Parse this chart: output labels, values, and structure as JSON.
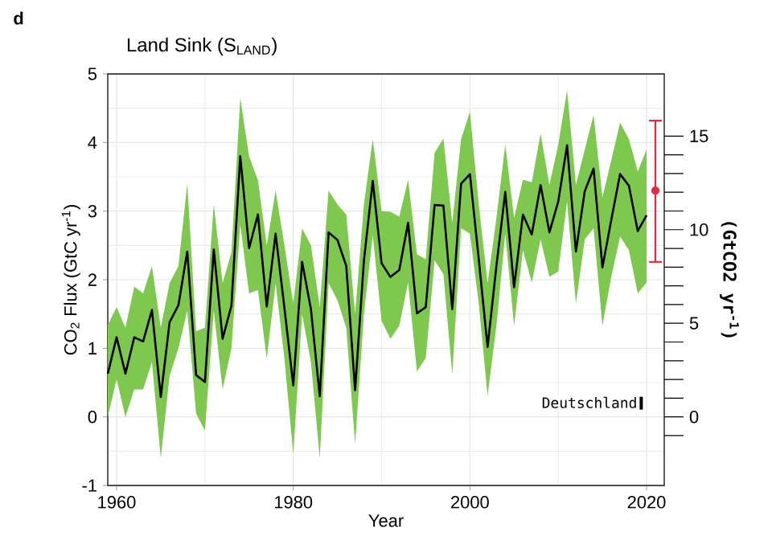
{
  "chart_data": {
    "type": "line",
    "title": "Land Sink (S$_{LAND}$)",
    "xlabel": "Year",
    "ylabel": "CO$_{2}$ Flux (GtC yr$^{-1}$)",
    "y2label": "(GtCO2 yr$^{-1}$)",
    "annotations": [
      "d",
      "Deutschland"
    ],
    "x": [
      1959,
      1960,
      1961,
      1962,
      1963,
      1964,
      1965,
      1966,
      1967,
      1968,
      1969,
      1970,
      1971,
      1972,
      1973,
      1974,
      1975,
      1976,
      1977,
      1978,
      1979,
      1980,
      1981,
      1982,
      1983,
      1984,
      1985,
      1986,
      1987,
      1988,
      1989,
      1990,
      1991,
      1992,
      1993,
      1994,
      1995,
      1996,
      1997,
      1998,
      1999,
      2000,
      2001,
      2002,
      2003,
      2004,
      2005,
      2006,
      2007,
      2008,
      2009,
      2010,
      2011,
      2012,
      2013,
      2014,
      2015,
      2016,
      2017,
      2018,
      2019,
      2020
    ],
    "series": [
      {
        "color": "#000000",
        "values": [
          0.63,
          1.16,
          0.63,
          1.16,
          1.1,
          1.56,
          0.29,
          1.38,
          1.63,
          2.41,
          0.61,
          0.51,
          2.44,
          1.14,
          1.62,
          3.8,
          2.46,
          2.95,
          1.61,
          2.67,
          1.59,
          0.46,
          2.26,
          1.57,
          0.3,
          2.69,
          2.58,
          2.2,
          0.39,
          2.28,
          3.44,
          2.24,
          2.04,
          2.14,
          2.83,
          1.51,
          1.6,
          3.09,
          3.08,
          1.57,
          3.4,
          3.54,
          2.3,
          1.02,
          2.2,
          3.28,
          1.89,
          2.95,
          2.66,
          3.38,
          2.69,
          3.14,
          3.96,
          2.41,
          3.29,
          3.62,
          2.18,
          2.87,
          3.54,
          3.37,
          2.71,
          2.94
        ],
        "lower": [
          0.0,
          0.55,
          0.0,
          0.4,
          0.4,
          0.8,
          -0.6,
          0.6,
          1.0,
          1.55,
          0.05,
          -0.2,
          1.55,
          0.4,
          1.0,
          2.8,
          1.8,
          1.85,
          0.85,
          1.95,
          0.85,
          -0.55,
          1.5,
          0.8,
          -0.6,
          1.95,
          1.7,
          1.3,
          -0.4,
          1.5,
          2.65,
          1.4,
          1.14,
          1.33,
          1.96,
          0.66,
          0.86,
          2.28,
          2.08,
          0.62,
          2.75,
          2.67,
          1.65,
          0.31,
          1.33,
          2.67,
          1.33,
          2.43,
          1.96,
          2.59,
          2.04,
          2.12,
          3.14,
          1.65,
          2.59,
          2.75,
          1.33,
          2.04,
          2.63,
          2.43,
          1.8,
          1.96
        ],
        "upper": [
          1.34,
          1.6,
          1.3,
          1.9,
          1.8,
          2.2,
          1.3,
          1.95,
          2.2,
          3.4,
          1.25,
          1.3,
          3.1,
          1.95,
          2.4,
          4.65,
          3.8,
          3.45,
          2.5,
          3.3,
          2.5,
          1.65,
          2.75,
          2.5,
          1.6,
          3.3,
          3.1,
          2.95,
          1.5,
          3.1,
          4.05,
          3.0,
          2.99,
          2.92,
          3.46,
          2.37,
          2.3,
          3.85,
          4.06,
          2.83,
          4.05,
          4.45,
          3.1,
          1.95,
          2.9,
          3.97,
          2.9,
          3.46,
          3.42,
          4.13,
          3.38,
          3.97,
          4.76,
          3.38,
          3.9,
          4.4,
          3.2,
          3.74,
          4.29,
          4.05,
          3.58,
          3.9
        ]
      },
      {
        "type": "scatter",
        "marker": "circle",
        "color": "#e8283c",
        "x": [
          2021
        ],
        "values": [
          3.3
        ],
        "errors": [
          [
            2.26,
            4.32
          ]
        ]
      }
    ],
    "xlim": [
      1959,
      2022
    ],
    "ylim": [
      -1,
      5
    ],
    "xticks": [
      1960,
      1980,
      2000,
      2020
    ],
    "yticks": [
      -1,
      0,
      1,
      2,
      3,
      4,
      5
    ],
    "y2lim": [
      -3.664,
      18.32
    ],
    "y2ticks": [
      {
        "value": -1,
        "label": null
      },
      0,
      {
        "value": 1,
        "label": null
      },
      {
        "value": 2,
        "label": null
      },
      {
        "value": 3,
        "label": null
      },
      {
        "value": 4,
        "label": null
      },
      5,
      {
        "value": 6,
        "label": null
      },
      {
        "value": 7,
        "label": null
      },
      {
        "value": 8,
        "label": null
      },
      {
        "value": 9,
        "label": null
      },
      10,
      {
        "value": 11,
        "label": null
      },
      {
        "value": 12,
        "label": null
      },
      {
        "value": 13,
        "label": null
      },
      {
        "value": 14,
        "label": null
      },
      15
    ],
    "grid": true,
    "marker": "none",
    "line_style": "solid"
  }
}
